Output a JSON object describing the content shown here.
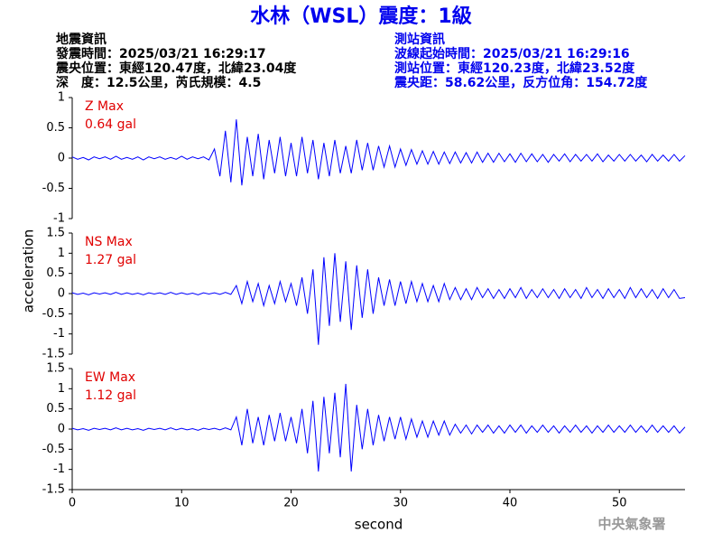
{
  "header": {
    "title": "水林（WSL）震度：1級",
    "event_info": [
      "地震資訊",
      "發震時間：2025/03/21 16:29:17",
      "震央位置：東經120.47度，北緯23.04度",
      "深　度：12.5公里，芮氏規模：4.5"
    ],
    "station_info": [
      "測站資訊",
      "波線起始時間：2025/03/21 16:29:16",
      "測站位置：東經120.23度，北緯23.52度",
      "震央距：58.62公里，反方位角：154.72度"
    ],
    "watermark": "中央氣象署"
  },
  "chart_data": [
    {
      "type": "line",
      "annotation": [
        "Z Max",
        "0.64 gal"
      ],
      "ylim": [
        -1,
        1
      ],
      "yticks": [
        -1,
        -0.5,
        0,
        0.5,
        1
      ],
      "xlim": [
        0,
        56
      ],
      "x": [
        0,
        0.5,
        1,
        1.5,
        2,
        2.5,
        3,
        3.5,
        4,
        4.5,
        5,
        5.5,
        6,
        6.5,
        7,
        7.5,
        8,
        8.5,
        9,
        9.5,
        10,
        10.5,
        11,
        11.5,
        12,
        12.5,
        13,
        13.5,
        14,
        14.5,
        15,
        15.5,
        16,
        16.5,
        17,
        17.5,
        18,
        18.5,
        19,
        19.5,
        20,
        20.5,
        21,
        21.5,
        22,
        22.5,
        23,
        23.5,
        24,
        24.5,
        25,
        25.5,
        26,
        26.5,
        27,
        27.5,
        28,
        28.5,
        29,
        29.5,
        30,
        30.5,
        31,
        31.5,
        32,
        32.5,
        33,
        33.5,
        34,
        34.5,
        35,
        35.5,
        36,
        36.5,
        37,
        37.5,
        38,
        38.5,
        39,
        39.5,
        40,
        40.5,
        41,
        41.5,
        42,
        42.5,
        43,
        43.5,
        44,
        44.5,
        45,
        45.5,
        46,
        46.5,
        47,
        47.5,
        48,
        48.5,
        49,
        49.5,
        50,
        50.5,
        51,
        51.5,
        52,
        52.5,
        53,
        53.5,
        54,
        54.5,
        55,
        55.5,
        56
      ],
      "series": [
        {
          "color": "#0000ff",
          "values": [
            0.02,
            -0.02,
            0.01,
            -0.03,
            0.02,
            -0.01,
            0.02,
            -0.02,
            0.03,
            -0.02,
            0.01,
            -0.02,
            0.02,
            -0.03,
            0.02,
            -0.01,
            0.02,
            -0.02,
            0.01,
            -0.02,
            0.03,
            -0.02,
            0.02,
            -0.01,
            0.02,
            -0.03,
            0.15,
            -0.3,
            0.45,
            -0.4,
            0.64,
            -0.45,
            0.35,
            -0.3,
            0.4,
            -0.35,
            0.3,
            -0.25,
            0.35,
            -0.3,
            0.25,
            -0.3,
            0.35,
            -0.25,
            0.3,
            -0.35,
            0.25,
            -0.3,
            0.3,
            -0.25,
            0.2,
            -0.25,
            0.3,
            -0.2,
            0.25,
            -0.2,
            0.2,
            -0.15,
            0.2,
            -0.15,
            0.15,
            -0.12,
            0.14,
            -0.1,
            0.12,
            -0.1,
            0.11,
            -0.1,
            0.1,
            -0.09,
            0.1,
            -0.08,
            0.09,
            -0.08,
            0.1,
            -0.07,
            0.08,
            -0.07,
            0.08,
            -0.06,
            0.07,
            -0.07,
            0.08,
            -0.06,
            0.07,
            -0.06,
            0.06,
            -0.07,
            0.06,
            -0.05,
            0.07,
            -0.06,
            0.06,
            -0.05,
            0.06,
            -0.05,
            0.07,
            -0.06,
            0.05,
            -0.05,
            0.06,
            -0.05,
            0.06,
            -0.05,
            0.05,
            -0.06,
            0.06,
            -0.05,
            0.05,
            -0.05,
            0.06,
            -0.05,
            0.04
          ]
        }
      ]
    },
    {
      "type": "line",
      "annotation": [
        "NS Max",
        "1.27 gal"
      ],
      "ylabel": "acceleration",
      "ylim": [
        -1.5,
        1.5
      ],
      "yticks": [
        -1.5,
        -1,
        -0.5,
        0,
        0.5,
        1,
        1.5
      ],
      "xlim": [
        0,
        56
      ],
      "x": [
        0,
        0.5,
        1,
        1.5,
        2,
        2.5,
        3,
        3.5,
        4,
        4.5,
        5,
        5.5,
        6,
        6.5,
        7,
        7.5,
        8,
        8.5,
        9,
        9.5,
        10,
        10.5,
        11,
        11.5,
        12,
        12.5,
        13,
        13.5,
        14,
        14.5,
        15,
        15.5,
        16,
        16.5,
        17,
        17.5,
        18,
        18.5,
        19,
        19.5,
        20,
        20.5,
        21,
        21.5,
        22,
        22.5,
        23,
        23.5,
        24,
        24.5,
        25,
        25.5,
        26,
        26.5,
        27,
        27.5,
        28,
        28.5,
        29,
        29.5,
        30,
        30.5,
        31,
        31.5,
        32,
        32.5,
        33,
        33.5,
        34,
        34.5,
        35,
        35.5,
        36,
        36.5,
        37,
        37.5,
        38,
        38.5,
        39,
        39.5,
        40,
        40.5,
        41,
        41.5,
        42,
        42.5,
        43,
        43.5,
        44,
        44.5,
        45,
        45.5,
        46,
        46.5,
        47,
        47.5,
        48,
        48.5,
        49,
        49.5,
        50,
        50.5,
        51,
        51.5,
        52,
        52.5,
        53,
        53.5,
        54,
        54.5,
        55,
        55.5,
        56
      ],
      "series": [
        {
          "color": "#0000ff",
          "values": [
            0.02,
            -0.02,
            0.01,
            -0.03,
            0.02,
            -0.01,
            0.02,
            -0.02,
            0.03,
            -0.02,
            0.02,
            -0.02,
            0.01,
            -0.03,
            0.02,
            -0.01,
            0.02,
            -0.02,
            0.03,
            -0.02,
            0.02,
            -0.02,
            0.01,
            -0.03,
            0.02,
            -0.01,
            0.02,
            -0.02,
            0.03,
            -0.02,
            0.2,
            -0.25,
            0.3,
            -0.2,
            0.25,
            -0.3,
            0.2,
            -0.25,
            0.3,
            -0.2,
            0.25,
            -0.3,
            0.4,
            -0.5,
            0.6,
            -1.27,
            0.9,
            -0.8,
            1.0,
            -0.7,
            0.8,
            -0.9,
            0.7,
            -0.6,
            0.6,
            -0.5,
            0.4,
            -0.3,
            0.35,
            -0.3,
            0.3,
            -0.25,
            0.3,
            -0.2,
            0.25,
            -0.2,
            0.2,
            -0.2,
            0.25,
            -0.15,
            0.15,
            -0.15,
            0.12,
            -0.15,
            0.15,
            -0.1,
            0.12,
            -0.12,
            0.1,
            -0.12,
            0.12,
            -0.1,
            0.15,
            -0.12,
            0.1,
            -0.1,
            0.12,
            -0.1,
            0.1,
            -0.12,
            0.12,
            -0.1,
            0.1,
            -0.12,
            0.15,
            -0.1,
            0.1,
            -0.12,
            0.12,
            -0.1,
            0.1,
            -0.12,
            0.15,
            -0.1,
            0.12,
            -0.1,
            0.1,
            -0.12,
            0.12,
            -0.1,
            0.1,
            -0.12,
            -0.1
          ]
        }
      ]
    },
    {
      "type": "line",
      "annotation": [
        "EW Max",
        "1.12 gal"
      ],
      "xlabel": "second",
      "ylim": [
        -1.5,
        1.5
      ],
      "yticks": [
        -1.5,
        -1,
        -0.5,
        0,
        0.5,
        1,
        1.5
      ],
      "xlim": [
        0,
        56
      ],
      "xticks": [
        0,
        10,
        20,
        30,
        40,
        50
      ],
      "x": [
        0,
        0.5,
        1,
        1.5,
        2,
        2.5,
        3,
        3.5,
        4,
        4.5,
        5,
        5.5,
        6,
        6.5,
        7,
        7.5,
        8,
        8.5,
        9,
        9.5,
        10,
        10.5,
        11,
        11.5,
        12,
        12.5,
        13,
        13.5,
        14,
        14.5,
        15,
        15.5,
        16,
        16.5,
        17,
        17.5,
        18,
        18.5,
        19,
        19.5,
        20,
        20.5,
        21,
        21.5,
        22,
        22.5,
        23,
        23.5,
        24,
        24.5,
        25,
        25.5,
        26,
        26.5,
        27,
        27.5,
        28,
        28.5,
        29,
        29.5,
        30,
        30.5,
        31,
        31.5,
        32,
        32.5,
        33,
        33.5,
        34,
        34.5,
        35,
        35.5,
        36,
        36.5,
        37,
        37.5,
        38,
        38.5,
        39,
        39.5,
        40,
        40.5,
        41,
        41.5,
        42,
        42.5,
        43,
        43.5,
        44,
        44.5,
        45,
        45.5,
        46,
        46.5,
        47,
        47.5,
        48,
        48.5,
        49,
        49.5,
        50,
        50.5,
        51,
        51.5,
        52,
        52.5,
        53,
        53.5,
        54,
        54.5,
        55,
        55.5,
        56
      ],
      "series": [
        {
          "color": "#0000ff",
          "values": [
            0.02,
            -0.02,
            0.01,
            -0.03,
            0.02,
            -0.01,
            0.02,
            -0.02,
            0.03,
            -0.02,
            0.02,
            -0.02,
            0.01,
            -0.03,
            0.02,
            -0.01,
            0.02,
            -0.02,
            0.03,
            -0.02,
            0.02,
            -0.02,
            0.01,
            -0.03,
            0.02,
            -0.01,
            0.02,
            -0.02,
            0.03,
            -0.02,
            0.3,
            -0.4,
            0.5,
            -0.35,
            0.3,
            -0.4,
            0.35,
            -0.3,
            0.4,
            -0.3,
            0.3,
            -0.35,
            0.5,
            -0.6,
            0.7,
            -1.05,
            0.8,
            -0.6,
            0.9,
            -0.7,
            1.12,
            -1.05,
            0.6,
            -0.5,
            0.5,
            -0.4,
            0.35,
            -0.3,
            0.3,
            -0.25,
            0.3,
            -0.25,
            0.25,
            -0.2,
            0.2,
            -0.2,
            0.2,
            -0.15,
            0.2,
            -0.15,
            0.12,
            -0.1,
            0.1,
            -0.12,
            0.1,
            -0.08,
            0.1,
            -0.1,
            0.08,
            -0.1,
            0.1,
            -0.08,
            0.1,
            -0.1,
            0.08,
            -0.08,
            0.1,
            -0.08,
            0.08,
            -0.1,
            0.08,
            -0.08,
            0.1,
            -0.08,
            0.08,
            -0.1,
            0.08,
            -0.08,
            0.1,
            -0.08,
            0.08,
            -0.08,
            0.1,
            -0.08,
            0.08,
            -0.08,
            0.1,
            -0.08,
            0.08,
            -0.08,
            0.08,
            -0.1,
            0.05
          ]
        }
      ]
    }
  ]
}
